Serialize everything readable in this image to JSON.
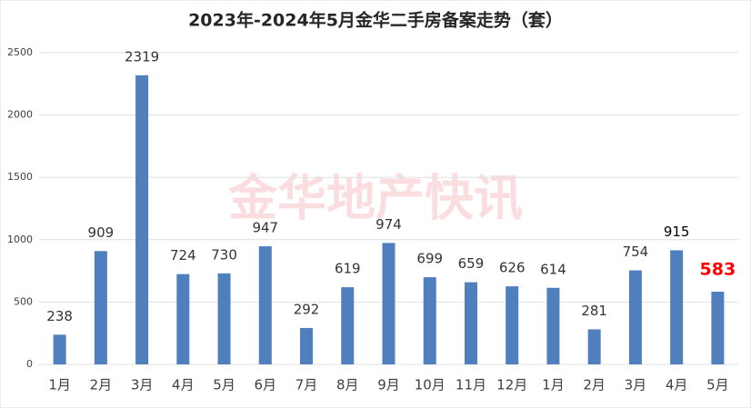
{
  "chart_data": {
    "type": "bar",
    "title": "2023年-2024年5月金华二手房备案走势（套）",
    "watermark": "金华地产快讯",
    "categories": [
      "1月",
      "2月",
      "3月",
      "4月",
      "5月",
      "6月",
      "7月",
      "8月",
      "9月",
      "10月",
      "11月",
      "12月",
      "1月",
      "2月",
      "3月",
      "4月",
      "5月"
    ],
    "values": [
      238,
      909,
      2319,
      724,
      730,
      947,
      292,
      619,
      974,
      699,
      659,
      626,
      614,
      281,
      754,
      915,
      583
    ],
    "color": "#4f7fbd",
    "value_label_colors": [
      "#333333",
      "#333333",
      "#333333",
      "#333333",
      "#333333",
      "#333333",
      "#333333",
      "#333333",
      "#333333",
      "#333333",
      "#333333",
      "#333333",
      "#333333",
      "#333333",
      "#333333",
      "#000000",
      "#ff0000"
    ],
    "ylim": [
      0,
      2500
    ],
    "yticks": [
      0,
      500,
      1000,
      1500,
      2000,
      2500
    ],
    "grid": true
  }
}
